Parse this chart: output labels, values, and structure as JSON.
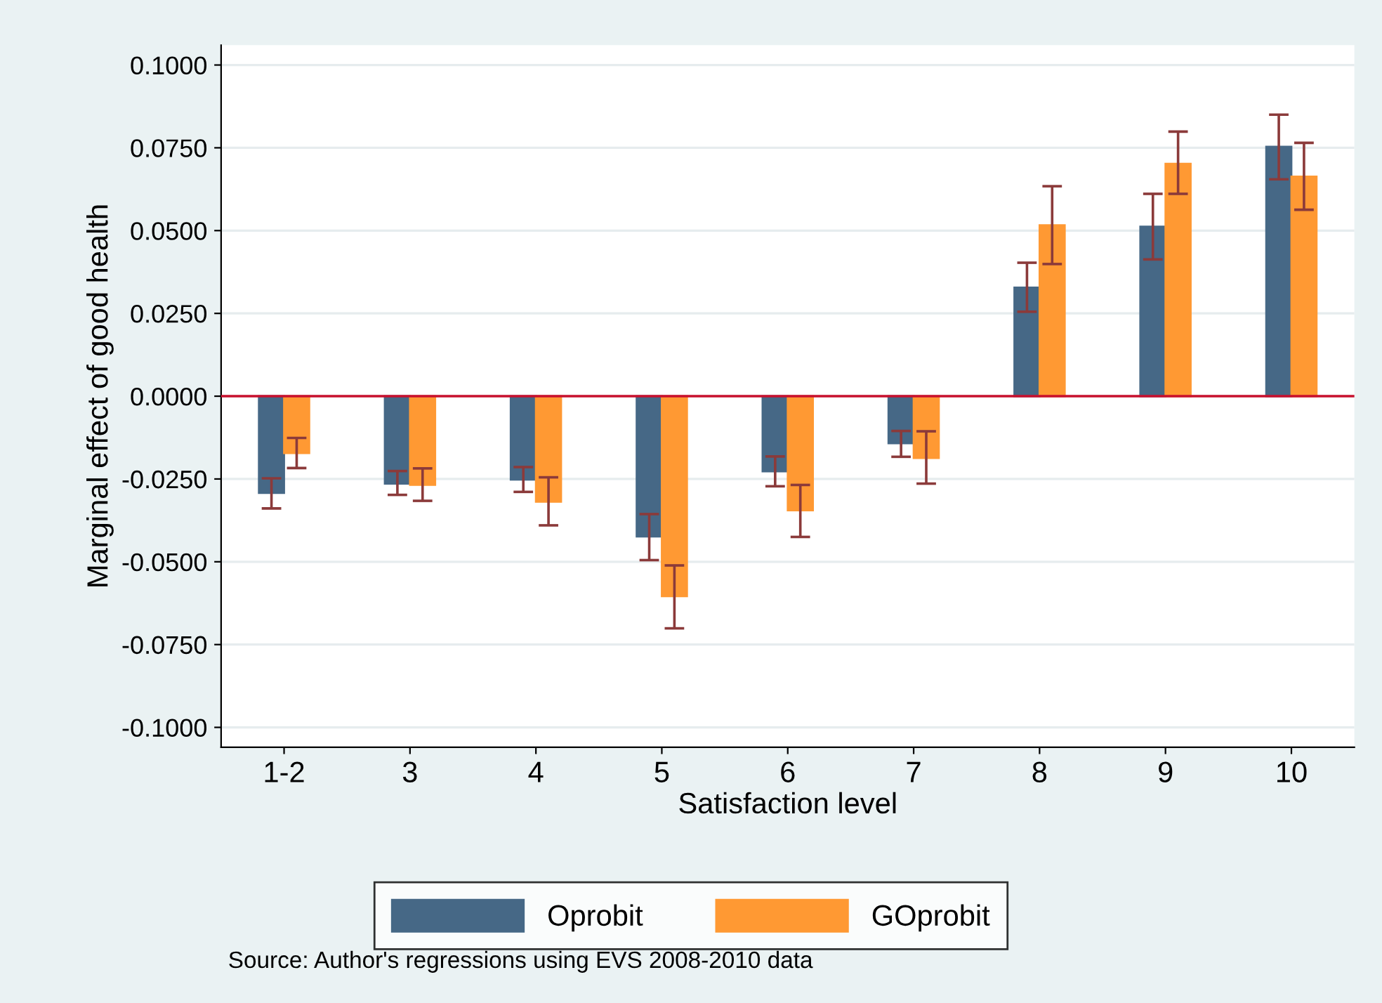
{
  "chart_data": {
    "type": "bar",
    "ylabel": "Marginal effect of good health",
    "xlabel": "Satisfaction level",
    "categories": [
      "1-2",
      "3",
      "4",
      "5",
      "6",
      "7",
      "8",
      "9",
      "10"
    ],
    "series": [
      {
        "name": "Oprobit",
        "color": "#466886",
        "values": [
          -0.0292,
          -0.0264,
          -0.0252,
          -0.0424,
          -0.0227,
          -0.0142,
          0.0328,
          0.0512,
          0.0753
        ],
        "errors": [
          [
            -0.0339,
            -0.0248
          ],
          [
            -0.0298,
            -0.0226
          ],
          [
            -0.0289,
            -0.0214
          ],
          [
            -0.0495,
            -0.0356
          ],
          [
            -0.0272,
            -0.0182
          ],
          [
            -0.0183,
            -0.0105
          ],
          [
            0.0255,
            0.0403
          ],
          [
            0.0413,
            0.0611
          ],
          [
            0.0655,
            0.085
          ]
        ]
      },
      {
        "name": "GOprobit",
        "color": "#ff9933",
        "values": [
          -0.0172,
          -0.0268,
          -0.0319,
          -0.0604,
          -0.0345,
          -0.0187,
          0.0516,
          0.0702,
          0.0663
        ],
        "errors": [
          [
            -0.0217,
            -0.0126
          ],
          [
            -0.0316,
            -0.0218
          ],
          [
            -0.039,
            -0.0245
          ],
          [
            -0.0701,
            -0.0511
          ],
          [
            -0.0425,
            -0.0268
          ],
          [
            -0.0264,
            -0.0106
          ],
          [
            0.0399,
            0.0634
          ],
          [
            0.0611,
            0.0799
          ],
          [
            0.0563,
            0.0765
          ]
        ]
      }
    ],
    "ylim": [
      -0.106,
      0.106
    ],
    "yticks": [
      {
        "value": -0.1,
        "label": "-0.1000"
      },
      {
        "value": -0.075,
        "label": "-0.0750"
      },
      {
        "value": -0.05,
        "label": "-0.0500"
      },
      {
        "value": -0.025,
        "label": "-0.0250"
      },
      {
        "value": 0,
        "label": "0.0000"
      },
      {
        "value": 0.025,
        "label": "0.0250"
      },
      {
        "value": 0.05,
        "label": "0.0500"
      },
      {
        "value": 0.075,
        "label": "0.0750"
      },
      {
        "value": 0.1,
        "label": "0.1000"
      }
    ],
    "ref_lines": [
      {
        "axis": "y",
        "value": 0,
        "label": null,
        "color": "#c8102e"
      }
    ],
    "grid": "y",
    "legend": "bottom",
    "annotations": [
      "Source: Author's regressions using EVS 2008-2010 data"
    ]
  }
}
